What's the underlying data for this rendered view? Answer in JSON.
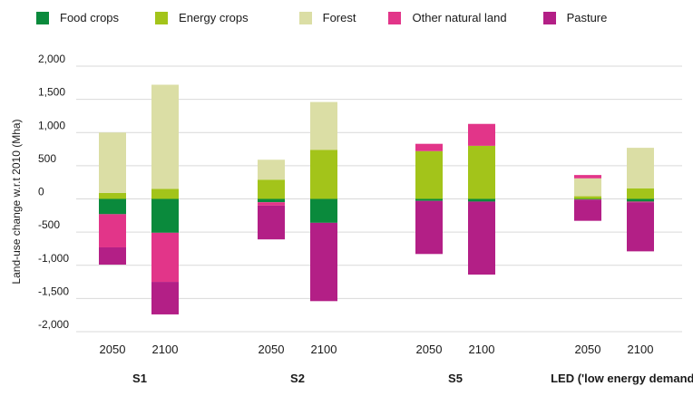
{
  "chart_data": {
    "type": "bar",
    "stacked": true,
    "ylabel": "Land-use change w.r.t 2010 (Mha)",
    "ylim": [
      -2000,
      2000
    ],
    "yticks": [
      2000,
      1500,
      1000,
      500,
      0,
      -500,
      -1000,
      -1500,
      -2000
    ],
    "ytick_labels": [
      "2,000",
      "1,500",
      "1,000",
      "500",
      "0",
      "-500",
      "-1,000",
      "-1,500",
      "-2,000"
    ],
    "grid": true,
    "legend_position": "top",
    "series": [
      {
        "name": "Food crops",
        "color": "#0a8a3c",
        "values": [
          -230,
          -510,
          -50,
          -360,
          -30,
          -40,
          -10,
          -40
        ]
      },
      {
        "name": "Energy crops",
        "color": "#a3c41a",
        "values": [
          90,
          150,
          290,
          740,
          720,
          800,
          40,
          160
        ]
      },
      {
        "name": "Forest",
        "color": "#dbdea5",
        "values": [
          910,
          1570,
          300,
          720,
          0,
          0,
          270,
          610
        ]
      },
      {
        "name": "Other natural land",
        "color": "#e23589",
        "values": [
          -500,
          -740,
          -50,
          0,
          110,
          330,
          50,
          -10
        ]
      },
      {
        "name": "Pasture",
        "color": "#b31f86",
        "values": [
          -260,
          -490,
          -510,
          -1180,
          -800,
          -1100,
          -320,
          -740
        ]
      }
    ],
    "groups": [
      {
        "name": "S1",
        "years": [
          "2050",
          "2100"
        ]
      },
      {
        "name": "S2",
        "years": [
          "2050",
          "2100"
        ]
      },
      {
        "name": "S5",
        "years": [
          "2050",
          "2100"
        ]
      },
      {
        "name": "LED ('low energy demand')",
        "years": [
          "2050",
          "2100"
        ]
      }
    ]
  }
}
